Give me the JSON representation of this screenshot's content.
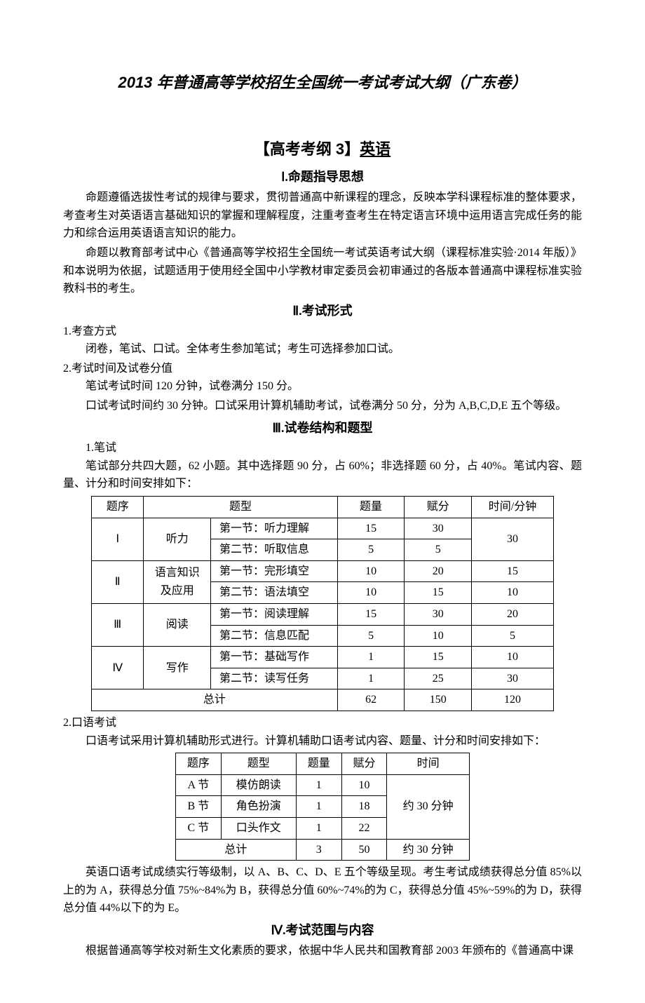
{
  "mainTitle": "2013 年普通高等学校招生全国统一考试考试大纲（广东卷）",
  "subtitlePrefix": "【高考考纲 3】",
  "subtitleSubject": "英语",
  "section1": {
    "heading": "Ⅰ.命题指导思想",
    "para1": "命题遵循选拔性考试的规律与要求，贯彻普通高中新课程的理念，反映本学科课程标准的整体要求，考查考生对英语语言基础知识的掌握和理解程度，注重考查考生在特定语言环境中运用语言完成任务的能力和综合运用英语语言知识的能力。",
    "para2": "命题以教育部考试中心《普通高等学校招生全国统一考试英语考试大纲（课程标准实验·2014 年版）》和本说明为依据，试题适用于使用经全国中小学教材审定委员会初审通过的各版本普通高中课程标准实验教科书的考生。"
  },
  "section2": {
    "heading": "Ⅱ.考试形式",
    "sub1": "1.考查方式",
    "sub1_content": "闭卷，笔试、口试。全体考生参加笔试；考生可选择参加口试。",
    "sub2": "2.考试时间及试卷分值",
    "sub2_line1": "笔试考试时间 120 分钟，试卷满分 150 分。",
    "sub2_line2": "口试考试时间约 30 分钟。口试采用计算机辅助考试，试卷满分 50 分，分为 A,B,C,D,E 五个等级。"
  },
  "section3": {
    "heading": "Ⅲ.试卷结构和题型",
    "sub1": "1.笔试",
    "sub1_intro": "笔试部分共四大题，62 小题。其中选择题 90 分，占 60%；非选择题 60 分，占 40%。笔试内容、题量、计分和时间安排如下：",
    "table1": {
      "header": [
        "题序",
        "题型",
        "题量",
        "赋分",
        "时间/分钟"
      ],
      "rows": [
        {
          "seq": "Ⅰ",
          "cat": "听力",
          "sub": "第一节：听力理解",
          "count": "15",
          "score": "30",
          "time": "30",
          "timeRowspan": 2
        },
        {
          "sub": "第二节：听取信息",
          "count": "5",
          "score": "5"
        },
        {
          "seq": "Ⅱ",
          "cat": "语言知识及应用",
          "sub": "第一节：完形填空",
          "count": "10",
          "score": "20",
          "time": "15"
        },
        {
          "sub": "第二节：语法填空",
          "count": "10",
          "score": "15",
          "time": "10"
        },
        {
          "seq": "Ⅲ",
          "cat": "阅读",
          "sub": "第一节：阅读理解",
          "count": "15",
          "score": "30",
          "time": "20"
        },
        {
          "sub": "第二节：信息匹配",
          "count": "5",
          "score": "10",
          "time": "5"
        },
        {
          "seq": "Ⅳ",
          "cat": "写作",
          "sub": "第一节：基础写作",
          "count": "1",
          "score": "15",
          "time": "10"
        },
        {
          "sub": "第二节：读写任务",
          "count": "1",
          "score": "25",
          "time": "30"
        }
      ],
      "total": {
        "label": "总计",
        "count": "62",
        "score": "150",
        "time": "120"
      }
    },
    "sub2": "2.口语考试",
    "sub2_intro": "口语考试采用计算机辅助形式进行。计算机辅助口语考试内容、题量、计分和时间安排如下：",
    "table2": {
      "header": [
        "题序",
        "题型",
        "题量",
        "赋分",
        "时间"
      ],
      "rows": [
        {
          "seq": "A 节",
          "type": "模仿朗读",
          "count": "1",
          "score": "10"
        },
        {
          "seq": "B 节",
          "type": "角色扮演",
          "count": "1",
          "score": "18",
          "time": "约 30 分钟"
        },
        {
          "seq": "C 节",
          "type": "口头作文",
          "count": "1",
          "score": "22"
        }
      ],
      "total": {
        "label": "总计",
        "count": "3",
        "score": "50",
        "time": "约 30 分钟"
      }
    },
    "grading_para": "英语口语考试成绩实行等级制，以 A、B、C、D、E 五个等级呈现。考生考试成绩获得总分值 85%以上的为 A，获得总分值 75%~84%为 B，获得总分值 60%~74%的为 C，获得总分值 45%~59%的为 D，获得总分值 44%以下的为 E。"
  },
  "section4": {
    "heading": "Ⅳ.考试范围与内容",
    "para1": "根据普通高等学校对新生文化素质的要求，依据中华人民共和国教育部 2003 年颁布的《普通高中课"
  }
}
